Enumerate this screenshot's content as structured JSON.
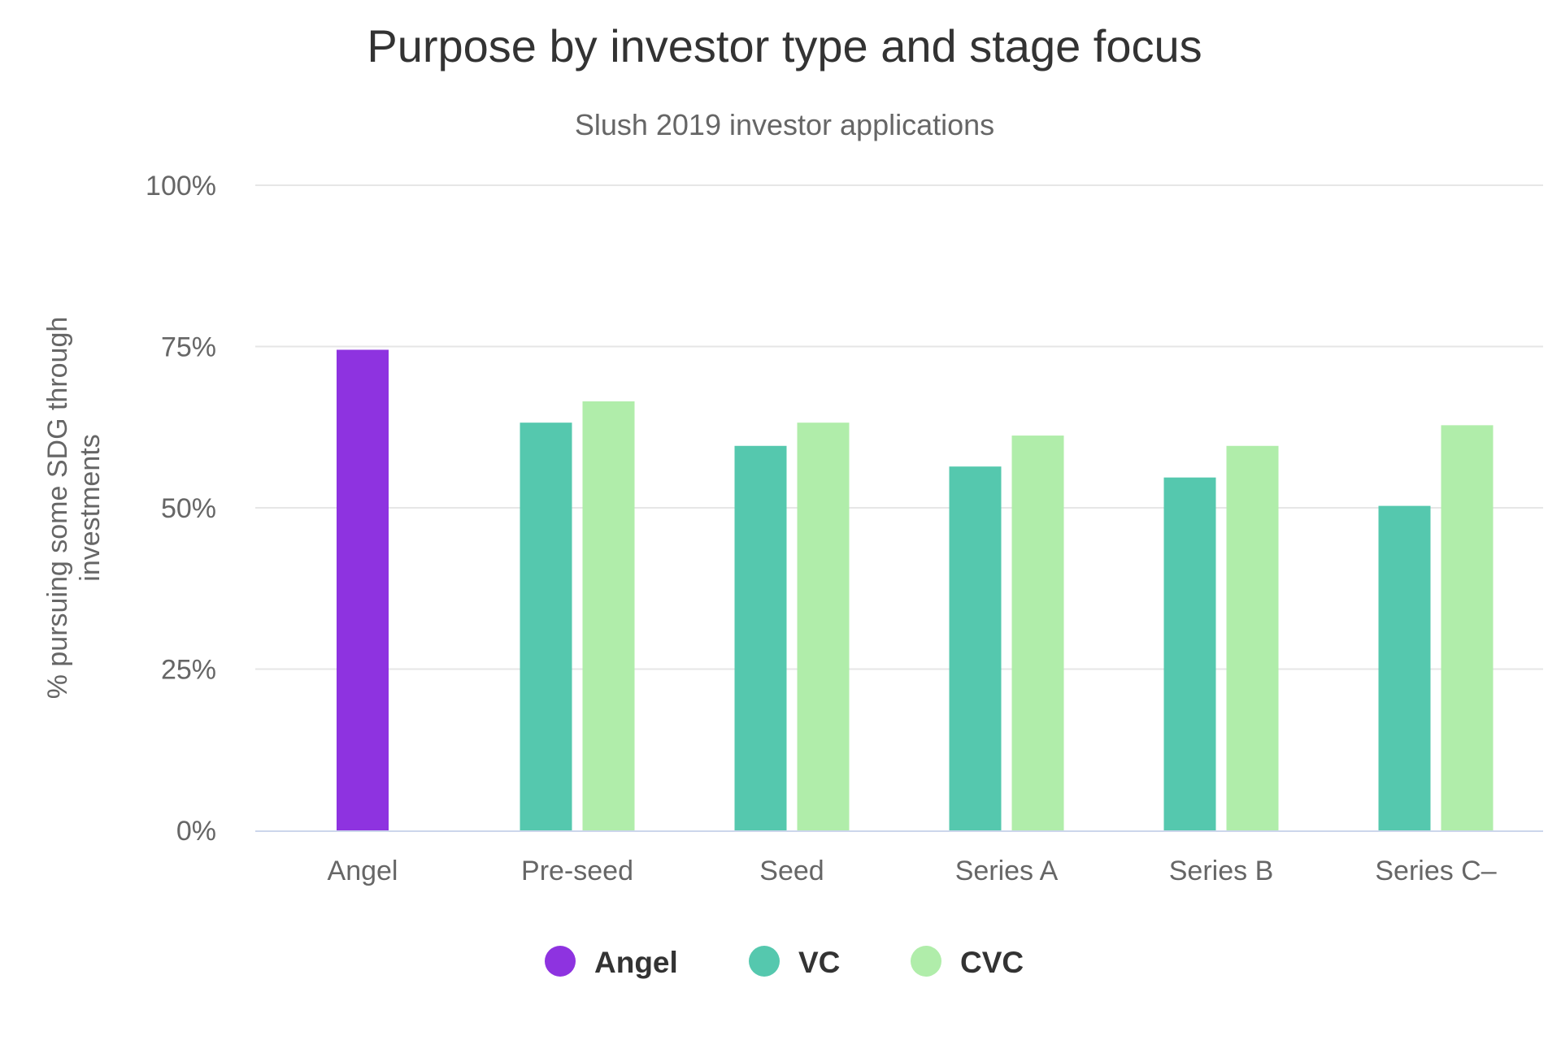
{
  "chart_data": {
    "type": "bar",
    "title": "Purpose by investor type and stage focus",
    "subtitle": "Slush 2019 investor applications",
    "ylabel_lines": [
      "% pursuing some SDG through",
      "investments"
    ],
    "xlabel": "",
    "ylim": [
      0,
      100
    ],
    "yticks": [
      0,
      25,
      50,
      75,
      100
    ],
    "ytick_labels": [
      "0%",
      "25%",
      "50%",
      "75%",
      "100%"
    ],
    "grid": true,
    "legend_position": "bottom",
    "categories": [
      "Angel",
      "Pre-seed",
      "Seed",
      "Series A",
      "Series B",
      "Series C–"
    ],
    "series": [
      {
        "name": "Angel",
        "color": "#8e33e0",
        "values": [
          74.5,
          null,
          null,
          null,
          null,
          null
        ]
      },
      {
        "name": "VC",
        "color": "#55c8ae",
        "values": [
          null,
          63.2,
          59.6,
          56.4,
          54.7,
          50.3
        ]
      },
      {
        "name": "CVC",
        "color": "#b0edaa",
        "values": [
          null,
          66.5,
          63.2,
          61.2,
          59.6,
          62.8
        ]
      }
    ]
  }
}
